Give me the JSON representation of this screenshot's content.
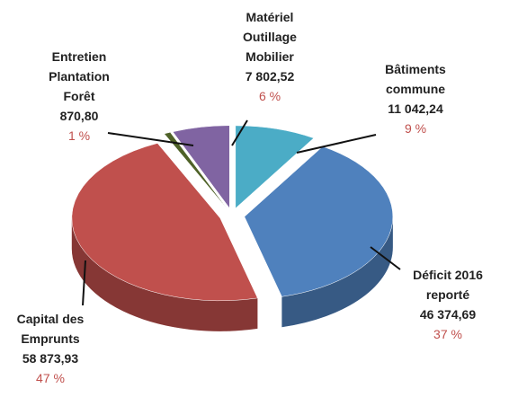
{
  "chart_data": {
    "type": "pie",
    "categories": [
      "Bâtiments\ncommune",
      "Déficit 2016\nreporté",
      "Capital des\nEmprunts",
      "Entretien\nPlantation\nForêt",
      "Matériel\nOutillage\nMobilier"
    ],
    "values": [
      11042.24,
      46374.69,
      58873.93,
      870.8,
      7802.52
    ],
    "value_labels": [
      "11 042,24",
      "46 374,69",
      "58 873,93",
      "870,80",
      "7 802,52"
    ],
    "percents": [
      9,
      37,
      47,
      1,
      6
    ],
    "percent_labels": [
      "9 %",
      "37 %",
      "47 %",
      "1 %",
      "6 %"
    ],
    "colors": [
      "#4bacc6",
      "#4f81bd",
      "#c0504d",
      "#4f6228",
      "#8064a2"
    ]
  }
}
